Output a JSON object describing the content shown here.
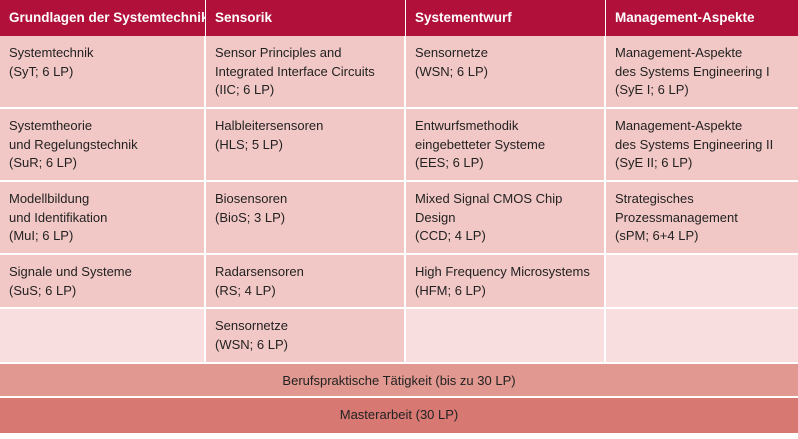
{
  "headers": [
    "Grundlagen der Systemtechnik",
    "Sensorik",
    "Systementwurf",
    "Management-Aspekte"
  ],
  "rows": [
    [
      "Systemtechnik\n(SyT; 6 LP)",
      "Sensor Principles and\nIntegrated Interface Circuits\n(IIC; 6 LP)",
      "Sensornetze\n(WSN; 6 LP)",
      "Management-Aspekte\ndes Systems Engineering I\n(SyE I; 6 LP)"
    ],
    [
      "Systemtheorie\nund Regelungstechnik\n(SuR; 6 LP)",
      "Halbleitersensoren\n(HLS; 5 LP)",
      "Entwurfsmethodik\neingebetteter Systeme\n(EES; 6 LP)",
      "Management-Aspekte\ndes Systems Engineering II\n(SyE II; 6 LP)"
    ],
    [
      "Modellbildung\nund Identifikation\n(MuI; 6 LP)",
      "Biosensoren\n(BioS; 3 LP)",
      "Mixed Signal CMOS Chip\nDesign\n(CCD; 4 LP)",
      "Strategisches\nProzessmanagement\n(sPM; 6+4 LP)"
    ],
    [
      "Signale und Systeme\n(SuS; 6 LP)",
      "Radarsensoren\n(RS; 4 LP)",
      "High Frequency Microsystems\n(HFM; 6 LP)",
      ""
    ],
    [
      "",
      "Sensornetze\n(WSN; 6 LP)",
      "",
      ""
    ]
  ],
  "practice": "Berufspraktische Tätigkeit (bis zu 30 LP)",
  "thesis": "Masterarbeit (30 LP)"
}
